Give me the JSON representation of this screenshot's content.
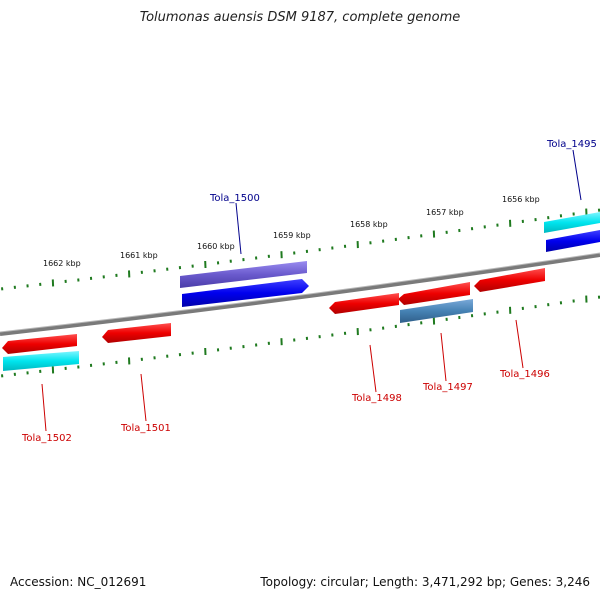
{
  "title": "Tolumonas auensis DSM 9187, complete genome",
  "footer": {
    "accession": "Accession: NC_012691",
    "stats": "Topology: circular; Length: 3,471,292 bp; Genes: 3,246"
  },
  "ticks": [
    "1656 kbp",
    "1657 kbp",
    "1658 kbp",
    "1659 kbp",
    "1660 kbp",
    "1661 kbp",
    "1662 kbp"
  ],
  "genes": [
    {
      "name": "Tola_1495",
      "strand": "forward",
      "color": "#00008b",
      "label_color": "#00008b"
    },
    {
      "name": "Tola_1500",
      "strand": "forward",
      "color": "#00008b",
      "label_color": "#00008b"
    },
    {
      "name": "Tola_1496",
      "strand": "reverse",
      "color": "#cc0000",
      "label_color": "#cc0000"
    },
    {
      "name": "Tola_1497",
      "strand": "reverse",
      "color": "#cc0000",
      "label_color": "#cc0000"
    },
    {
      "name": "Tola_1498",
      "strand": "reverse",
      "color": "#cc0000",
      "label_color": "#cc0000"
    },
    {
      "name": "Tola_1501",
      "strand": "reverse",
      "color": "#cc0000",
      "label_color": "#cc0000"
    },
    {
      "name": "Tola_1502",
      "strand": "reverse",
      "color": "#cc0000",
      "label_color": "#cc0000"
    }
  ],
  "colors": {
    "backbone": "#808080",
    "tick": "#1f7a1f",
    "forward_cds": "#0000ee",
    "reverse_cds": "#ee0000",
    "feature_cyan": "#00e5ee",
    "feature_purple": "#6a5acd",
    "feature_steel": "#4682b4"
  }
}
